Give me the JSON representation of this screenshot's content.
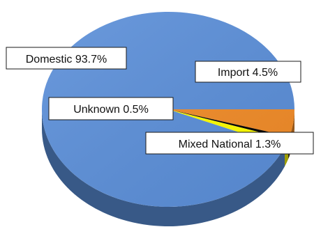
{
  "chart_data": {
    "type": "pie",
    "style": "3d",
    "slices": [
      {
        "label": "Domestic",
        "value": 93.7,
        "display": "Domestic 93.7%",
        "color": "#5b8fd9"
      },
      {
        "label": "Import",
        "value": 4.5,
        "display": "Import 4.5%",
        "color": "#f28c28"
      },
      {
        "label": "Unknown",
        "value": 0.5,
        "display": "Unknown 0.5%",
        "color": "#000000"
      },
      {
        "label": "Mixed National",
        "value": 1.3,
        "display": "Mixed National 1.3%",
        "color": "#ffff00"
      }
    ]
  }
}
